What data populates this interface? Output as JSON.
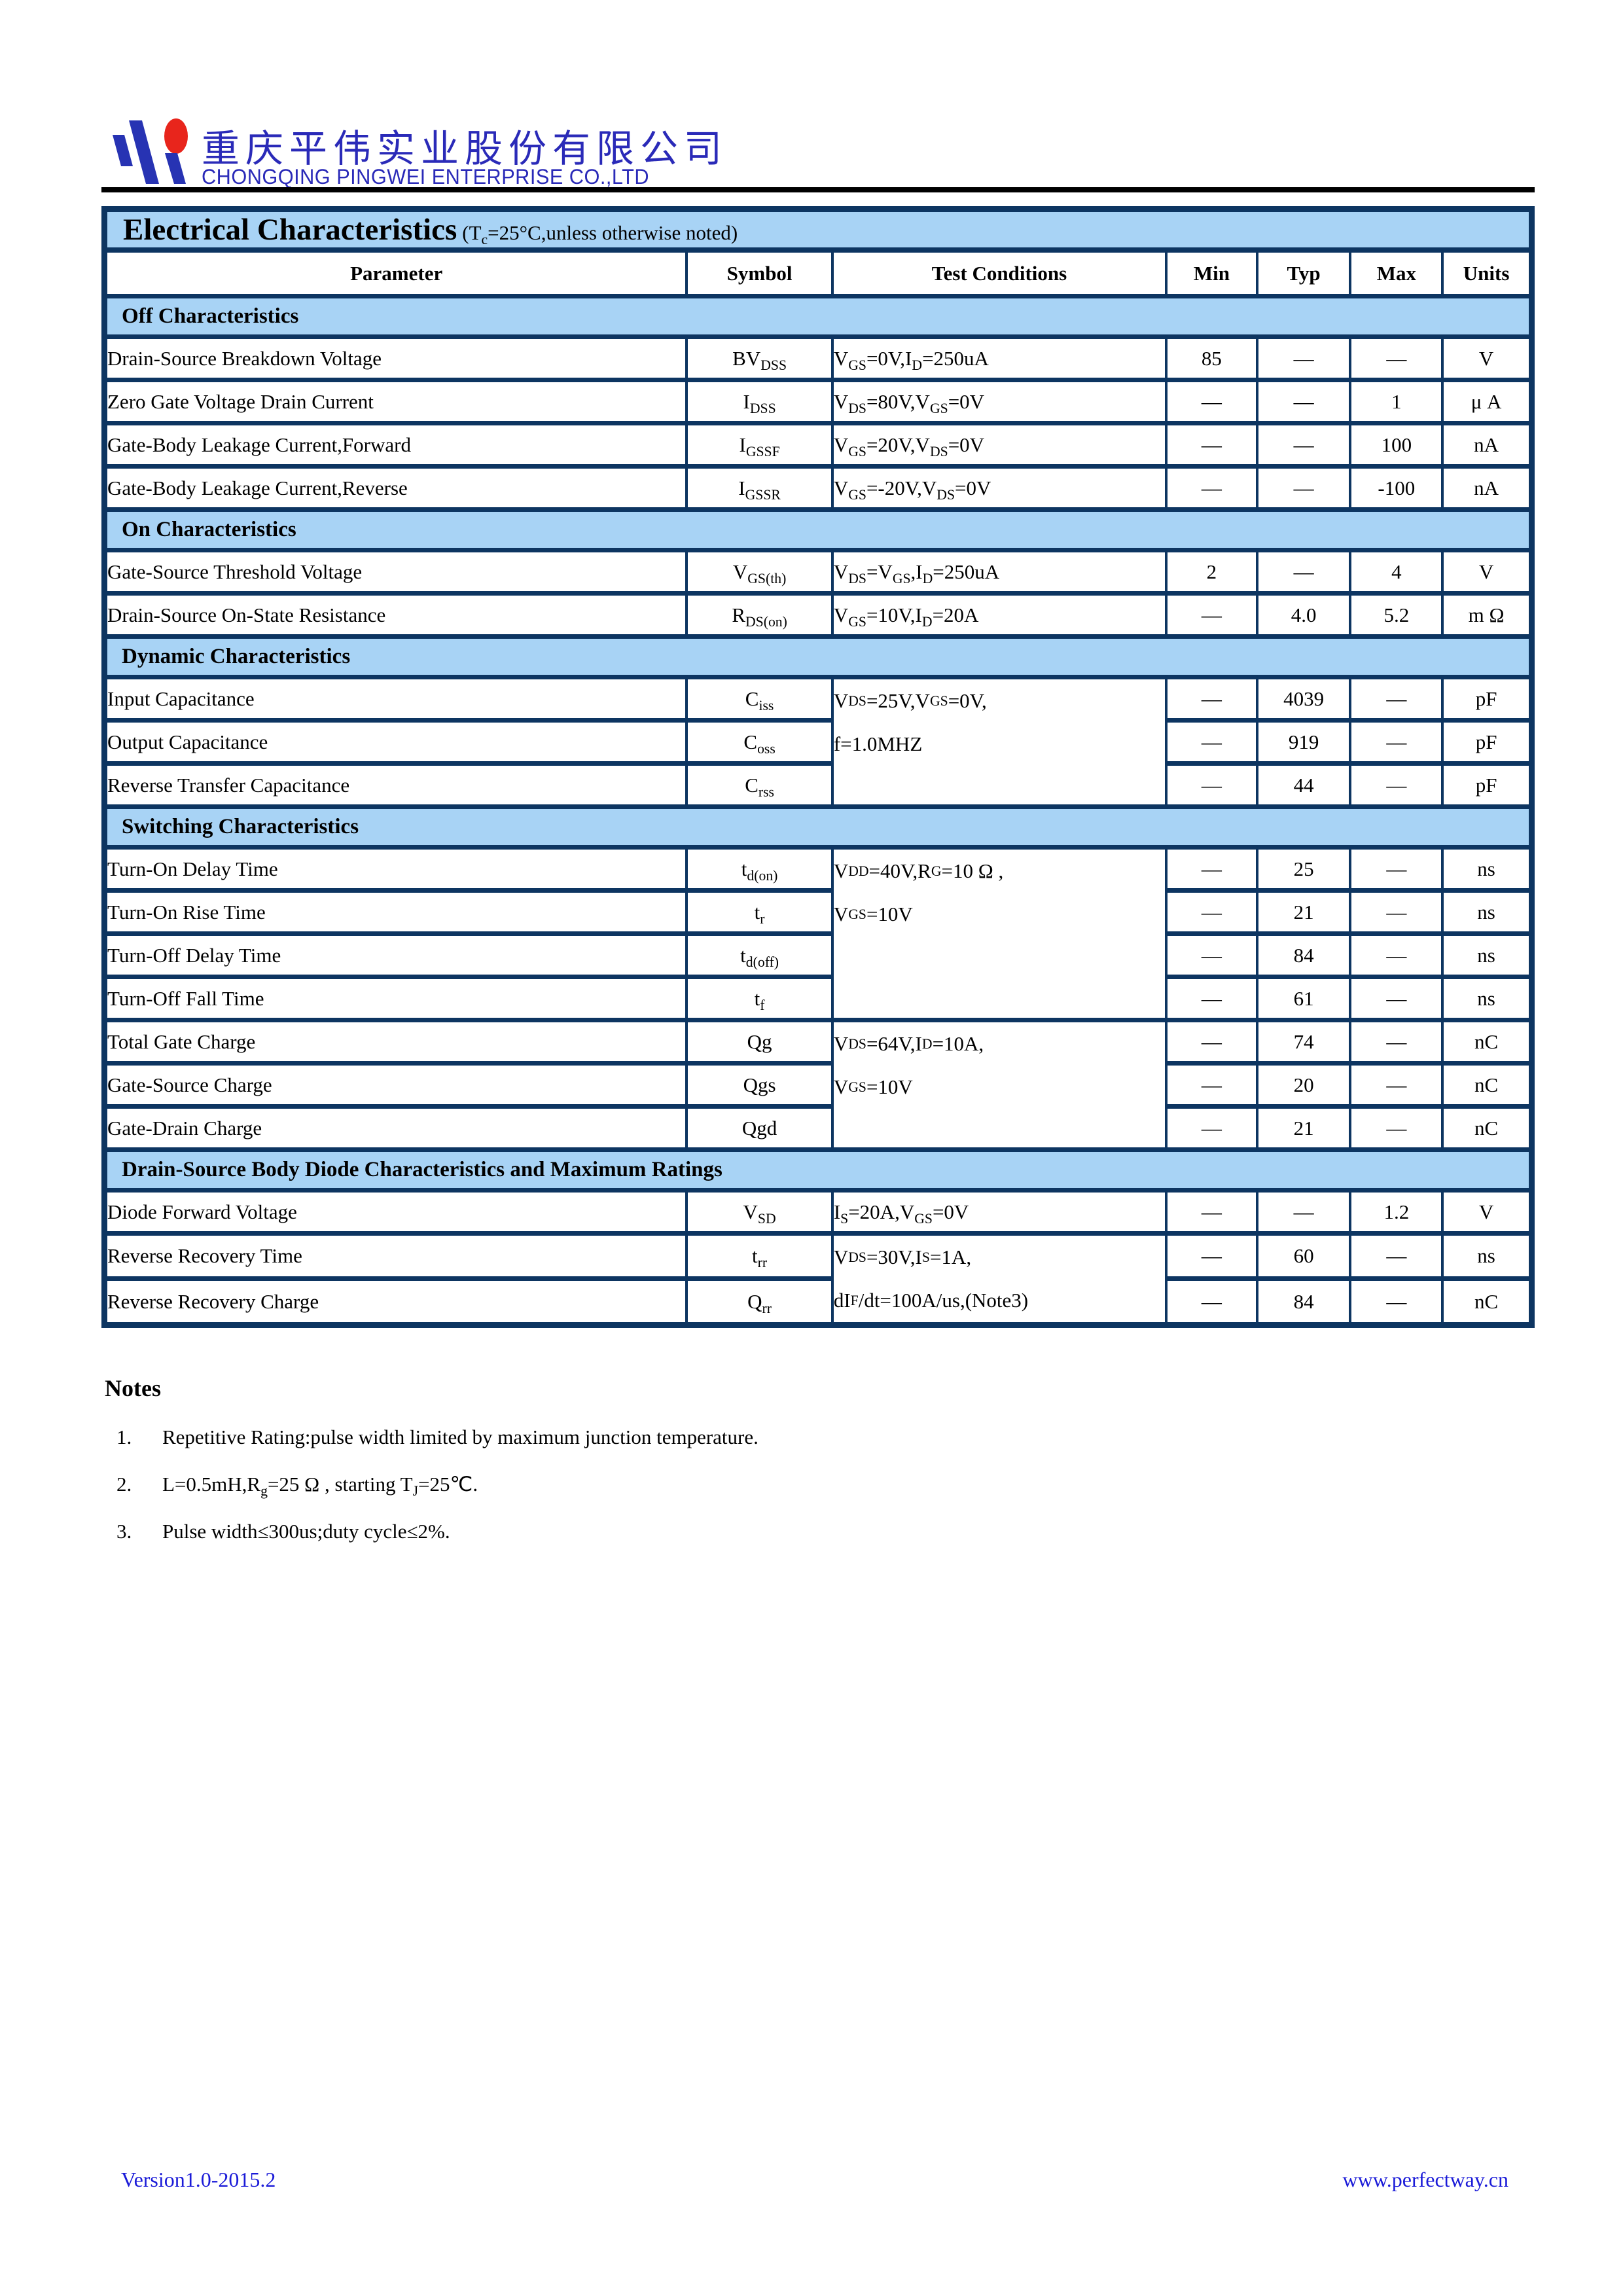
{
  "header": {
    "company_cn": "重庆平伟实业股份有限公司",
    "company_en": "CHONGQING PINGWEI ENTERPRISE CO.,LTD",
    "logo_colors": {
      "blue": "#2733b3",
      "red": "#e8251c"
    }
  },
  "colors": {
    "table_border_navy": "#0d3561",
    "section_band_blue": "#a8d3f5",
    "footer_link_blue": "#1b1bd8",
    "company_name_blue": "#2a2ab8"
  },
  "table": {
    "title": "Electrical Characteristics",
    "title_note": "(T~c~=25°C,unless otherwise noted)",
    "columns": [
      "Parameter",
      "Symbol",
      "Test Conditions",
      "Min",
      "Typ",
      "Max",
      "Units"
    ],
    "sections": [
      {
        "heading": "Off Characteristics",
        "rows": [
          {
            "p": "Drain-Source Breakdown Voltage",
            "s": "BV~DSS~",
            "c": {
              "lines": [
                "V~GS~=0V,I~D~=250uA"
              ],
              "span": 1
            },
            "min": "85",
            "typ": "—",
            "max": "—",
            "u": "V"
          },
          {
            "p": "Zero Gate Voltage Drain Current",
            "s": "I~DSS~",
            "c": {
              "lines": [
                "V~DS~=80V,V~GS~=0V"
              ],
              "span": 1
            },
            "min": "—",
            "typ": "—",
            "max": "1",
            "u": "μ A"
          },
          {
            "p": "Gate-Body Leakage Current,Forward",
            "s": "I~GSSF~",
            "c": {
              "lines": [
                "V~GS~=20V,V~DS~=0V"
              ],
              "span": 1
            },
            "min": "—",
            "typ": "—",
            "max": "100",
            "u": "nA"
          },
          {
            "p": "Gate-Body Leakage Current,Reverse",
            "s": "I~GSSR~",
            "c": {
              "lines": [
                "V~GS~=-20V,V~DS~=0V"
              ],
              "span": 1
            },
            "min": "—",
            "typ": "—",
            "max": "-100",
            "u": "nA"
          }
        ]
      },
      {
        "heading": "On Characteristics",
        "rows": [
          {
            "p": "Gate-Source Threshold Voltage",
            "s": "V~GS(th)~",
            "c": {
              "lines": [
                "V~DS~=V~GS~,I~D~=250uA"
              ],
              "span": 1
            },
            "min": "2",
            "typ": "—",
            "max": "4",
            "u": "V"
          },
          {
            "p": "Drain-Source On-State Resistance",
            "s": "R~DS(on)~",
            "c": {
              "lines": [
                "V~GS~=10V,I~D~=20A"
              ],
              "span": 1
            },
            "min": "—",
            "typ": "4.0",
            "max": "5.2",
            "u": "m Ω"
          }
        ]
      },
      {
        "heading": "Dynamic Characteristics",
        "rows": [
          {
            "p": "Input Capacitance",
            "s": "C~iss~",
            "c": {
              "lines": [
                "V~DS~=25V,V~GS~=0V,",
                "f=1.0MHZ"
              ],
              "span": 3
            },
            "min": "—",
            "typ": "4039",
            "max": "—",
            "u": "pF"
          },
          {
            "p": "Output Capacitance",
            "s": "C~oss~",
            "c": null,
            "min": "—",
            "typ": "919",
            "max": "—",
            "u": "pF"
          },
          {
            "p": "Reverse Transfer Capacitance",
            "s": "C~rss~",
            "c": null,
            "min": "—",
            "typ": "44",
            "max": "—",
            "u": "pF"
          }
        ]
      },
      {
        "heading": "Switching Characteristics",
        "rows": [
          {
            "p": "Turn-On Delay Time",
            "s": "t~d(on)~",
            "c": {
              "lines": [
                "V~DD~=40V,R~G~=10 Ω ,",
                "V~GS~=10V"
              ],
              "span": 4
            },
            "min": "—",
            "typ": "25",
            "max": "—",
            "u": "ns"
          },
          {
            "p": "Turn-On Rise Time",
            "s": "t~r~",
            "c": null,
            "min": "—",
            "typ": "21",
            "max": "—",
            "u": "ns"
          },
          {
            "p": "Turn-Off Delay Time",
            "s": "t~d(off)~",
            "c": null,
            "min": "—",
            "typ": "84",
            "max": "—",
            "u": "ns"
          },
          {
            "p": "Turn-Off Fall Time",
            "s": "t~f~",
            "c": null,
            "min": "—",
            "typ": "61",
            "max": "—",
            "u": "ns"
          },
          {
            "p": "Total Gate Charge",
            "s": "Qg",
            "c": {
              "lines": [
                "V~DS~=64V,I~D~=10A,",
                "V~GS~=10V"
              ],
              "span": 3
            },
            "min": "—",
            "typ": "74",
            "max": "—",
            "u": "nC"
          },
          {
            "p": "Gate-Source Charge",
            "s": "Qgs",
            "c": null,
            "min": "—",
            "typ": "20",
            "max": "—",
            "u": "nC"
          },
          {
            "p": "Gate-Drain Charge",
            "s": "Qgd",
            "c": null,
            "min": "—",
            "typ": "21",
            "max": "—",
            "u": "nC"
          }
        ]
      },
      {
        "heading": "Drain-Source Body Diode Characteristics and Maximum Ratings",
        "rows": [
          {
            "p": "Diode Forward Voltage",
            "s": "V~SD~",
            "c": {
              "lines": [
                "I~S~=20A,V~GS~=0V"
              ],
              "span": 1
            },
            "min": "—",
            "typ": "—",
            "max": "1.2",
            "u": "V"
          },
          {
            "p": "Reverse Recovery Time",
            "s": "t~rr~",
            "c": {
              "lines": [
                "V~DS~=30V,I~S~=1A,",
                "dI~F~/dt=100A/us,(Note3)"
              ],
              "span": 2
            },
            "min": "—",
            "typ": "60",
            "max": "—",
            "u": "ns"
          },
          {
            "p": "Reverse Recovery Charge",
            "s": "Q~rr~",
            "c": null,
            "min": "—",
            "typ": "84",
            "max": "—",
            "u": "nC"
          }
        ]
      }
    ]
  },
  "notes": {
    "heading": "Notes",
    "items": [
      {
        "num": "1.",
        "text": "Repetitive Rating:pulse width limited by maximum junction temperature."
      },
      {
        "num": "2.",
        "text": "L=0.5mH,R~g~=25 Ω , starting T~J~=25℃."
      },
      {
        "num": "3.",
        "text": "Pulse width≤300us;duty cycle≤2%."
      }
    ]
  },
  "footer": {
    "version": "Version1.0-2015.2",
    "website": "www.perfectway.cn"
  }
}
